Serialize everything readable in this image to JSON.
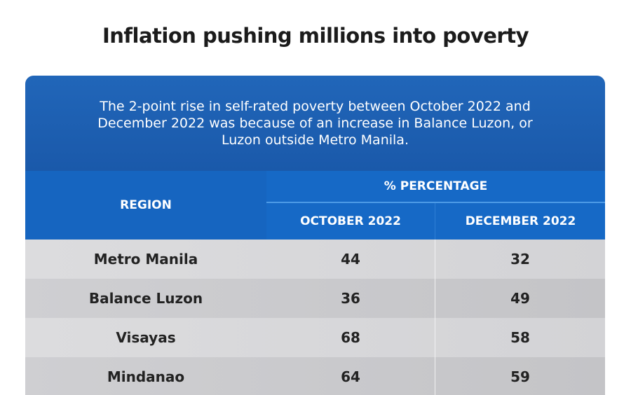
{
  "title": "Inflation pushing millions into poverty",
  "subtitle": "The 2-point rise in self-rated poverty between October 2022 and December 2022 was because of an increase in Balance Luzon, or Luzon outside Metro Manila.",
  "colors": {
    "header_blue": "#1a59aa",
    "column_head_blue": "#1669c6",
    "row_light": "#d8d8da",
    "row_dark": "#c9c9cc",
    "text_dark": "#222222"
  },
  "chart_data": {
    "type": "table",
    "title": "Inflation pushing millions into poverty",
    "subtitle": "The 2-point rise in self-rated poverty between October 2022 and December 2022 was because of an increase in Balance Luzon, or Luzon outside Metro Manila.",
    "columns": {
      "region": "REGION",
      "group": "% PERCENTAGE",
      "periods": [
        "OCTOBER 2022",
        "DECEMBER 2022"
      ]
    },
    "rows": [
      {
        "region": "Metro Manila",
        "values": [
          44,
          32
        ]
      },
      {
        "region": "Balance Luzon",
        "values": [
          36,
          49
        ]
      },
      {
        "region": "Visayas",
        "values": [
          68,
          58
        ]
      },
      {
        "region": "Mindanao",
        "values": [
          64,
          59
        ]
      }
    ]
  }
}
